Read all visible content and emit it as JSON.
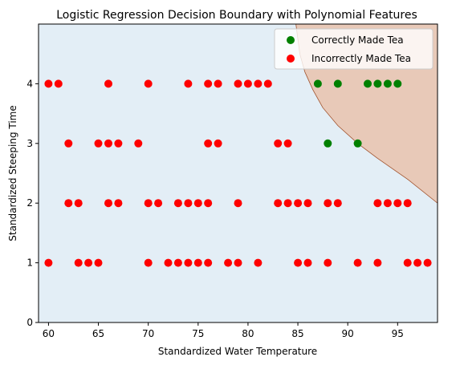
{
  "chart_data": {
    "type": "scatter",
    "title": "Logistic Regression Decision Boundary with Polynomial Features",
    "xlabel": "Standardized Water Temperature",
    "ylabel": "Standardized Steeping Time",
    "xlim": [
      59,
      99
    ],
    "ylim": [
      0,
      5
    ],
    "xticks": [
      "60",
      "65",
      "70",
      "75",
      "80",
      "85",
      "90",
      "95"
    ],
    "yticks": [
      "0",
      "1",
      "2",
      "3",
      "4"
    ],
    "grid": false,
    "legend": "top-right",
    "colors": {
      "background_region": "#e3eef6",
      "positive_region": "#e8c9b8",
      "boundary": "#a0522d"
    },
    "decision_boundary": {
      "class_region": "Correctly Made Tea",
      "points": [
        [
          99,
          2.0
        ],
        [
          96,
          2.4
        ],
        [
          93,
          2.75
        ],
        [
          91,
          3.0
        ],
        [
          89,
          3.3
        ],
        [
          87.5,
          3.6
        ],
        [
          86.5,
          3.9
        ],
        [
          85.7,
          4.2
        ],
        [
          85.2,
          4.5
        ],
        [
          84.8,
          5.0
        ]
      ]
    },
    "series": [
      {
        "name": "Correctly Made Tea",
        "color": "#008000",
        "points": [
          [
            87,
            4
          ],
          [
            89,
            4
          ],
          [
            92,
            4
          ],
          [
            93,
            4
          ],
          [
            94,
            4
          ],
          [
            95,
            4
          ],
          [
            88,
            3
          ],
          [
            91,
            3
          ]
        ]
      },
      {
        "name": "Incorrectly Made Tea",
        "color": "#ff0000",
        "points": [
          [
            60,
            4
          ],
          [
            61,
            4
          ],
          [
            66,
            4
          ],
          [
            70,
            4
          ],
          [
            74,
            4
          ],
          [
            76,
            4
          ],
          [
            77,
            4
          ],
          [
            79,
            4
          ],
          [
            80,
            4
          ],
          [
            81,
            4
          ],
          [
            82,
            4
          ],
          [
            62,
            3
          ],
          [
            65,
            3
          ],
          [
            66,
            3
          ],
          [
            67,
            3
          ],
          [
            69,
            3
          ],
          [
            76,
            3
          ],
          [
            77,
            3
          ],
          [
            83,
            3
          ],
          [
            84,
            3
          ],
          [
            62,
            2
          ],
          [
            63,
            2
          ],
          [
            66,
            2
          ],
          [
            67,
            2
          ],
          [
            70,
            2
          ],
          [
            71,
            2
          ],
          [
            73,
            2
          ],
          [
            74,
            2
          ],
          [
            75,
            2
          ],
          [
            76,
            2
          ],
          [
            79,
            2
          ],
          [
            83,
            2
          ],
          [
            84,
            2
          ],
          [
            85,
            2
          ],
          [
            86,
            2
          ],
          [
            88,
            2
          ],
          [
            89,
            2
          ],
          [
            93,
            2
          ],
          [
            94,
            2
          ],
          [
            95,
            2
          ],
          [
            96,
            2
          ],
          [
            60,
            1
          ],
          [
            63,
            1
          ],
          [
            64,
            1
          ],
          [
            65,
            1
          ],
          [
            70,
            1
          ],
          [
            72,
            1
          ],
          [
            73,
            1
          ],
          [
            74,
            1
          ],
          [
            75,
            1
          ],
          [
            76,
            1
          ],
          [
            78,
            1
          ],
          [
            79,
            1
          ],
          [
            81,
            1
          ],
          [
            85,
            1
          ],
          [
            86,
            1
          ],
          [
            88,
            1
          ],
          [
            91,
            1
          ],
          [
            93,
            1
          ],
          [
            96,
            1
          ],
          [
            97,
            1
          ],
          [
            98,
            1
          ]
        ]
      }
    ]
  }
}
